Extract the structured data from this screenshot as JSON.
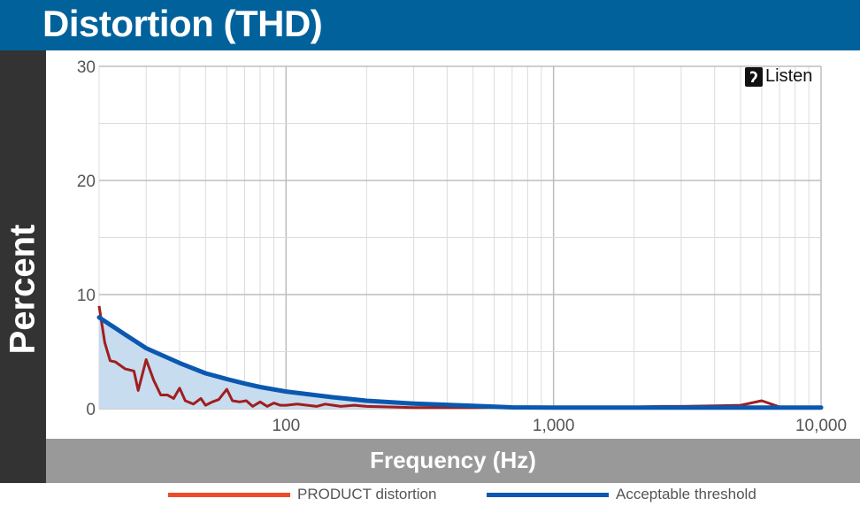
{
  "chart_data": {
    "type": "line",
    "title": "Distortion (THD)",
    "xlabel": "Frequency (Hz)",
    "ylabel": "Percent",
    "x_scale": "log",
    "xlim": [
      20,
      10000
    ],
    "ylim": [
      0,
      30
    ],
    "x_ticks": [
      {
        "value": 100,
        "label": "100"
      },
      {
        "value": 1000,
        "label": "1,000"
      },
      {
        "value": 10000,
        "label": "10,000"
      }
    ],
    "y_ticks": [
      {
        "value": 0,
        "label": "0"
      },
      {
        "value": 10,
        "label": "10"
      },
      {
        "value": 20,
        "label": "20"
      },
      {
        "value": 30,
        "label": "30"
      }
    ],
    "grid": true,
    "legend_position": "bottom",
    "watermark": "Listen",
    "series": [
      {
        "name": "PRODUCT distortion",
        "color": "#a01e1e",
        "legend_color": "#ee4b2b",
        "x": [
          20,
          21,
          22,
          23,
          25,
          27,
          28,
          30,
          32,
          34,
          36,
          38,
          40,
          42,
          45,
          48,
          50,
          53,
          56,
          60,
          63,
          67,
          71,
          75,
          80,
          85,
          90,
          95,
          100,
          110,
          120,
          130,
          140,
          150,
          160,
          180,
          200,
          250,
          300,
          400,
          500,
          600,
          700,
          800,
          1000,
          1200,
          1500,
          2000,
          2500,
          3000,
          4000,
          5000,
          6000,
          7000,
          8000,
          10000
        ],
        "y": [
          9.0,
          5.8,
          4.2,
          4.1,
          3.5,
          3.3,
          1.6,
          4.3,
          2.5,
          1.2,
          1.2,
          0.9,
          1.8,
          0.7,
          0.4,
          0.9,
          0.3,
          0.6,
          0.8,
          1.7,
          0.7,
          0.6,
          0.7,
          0.2,
          0.6,
          0.2,
          0.5,
          0.3,
          0.3,
          0.4,
          0.3,
          0.2,
          0.4,
          0.3,
          0.2,
          0.3,
          0.2,
          0.15,
          0.1,
          0.1,
          0.1,
          0.12,
          0.15,
          0.1,
          0.1,
          0.1,
          0.1,
          0.15,
          0.2,
          0.2,
          0.25,
          0.3,
          0.7,
          0.15,
          0.1,
          0.1
        ]
      },
      {
        "name": "Acceptable threshold",
        "color": "#0a58b0",
        "fill": "#c8dcef",
        "x": [
          20,
          25,
          30,
          40,
          50,
          60,
          70,
          80,
          100,
          150,
          200,
          300,
          500,
          700,
          1000,
          2000,
          5000,
          10000
        ],
        "y": [
          8.0,
          6.5,
          5.3,
          4.0,
          3.1,
          2.6,
          2.2,
          1.9,
          1.5,
          1.0,
          0.7,
          0.45,
          0.25,
          0.12,
          0.1,
          0.1,
          0.1,
          0.1
        ]
      }
    ]
  }
}
